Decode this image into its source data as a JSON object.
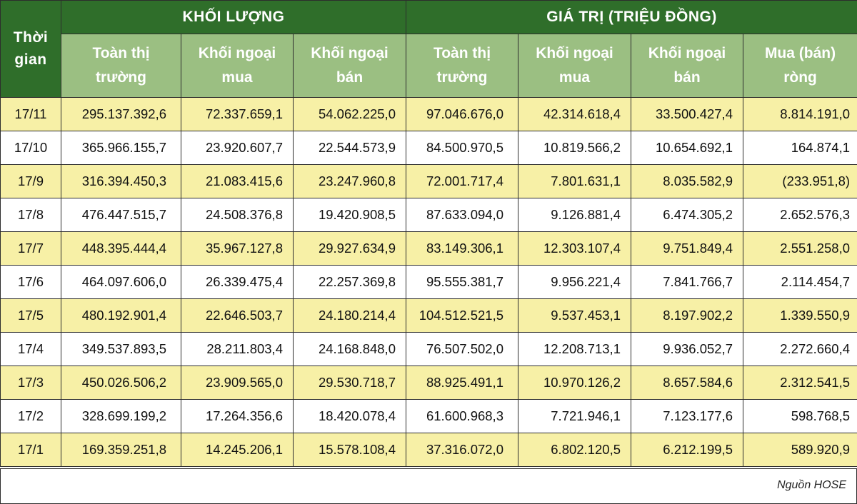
{
  "headers": {
    "time": "Thời\ngian",
    "group_volume": "KHỐI LƯỢNG",
    "group_value": "GIÁ TRỊ (TRIỆU ĐỒNG)",
    "vol_total": "Toàn thị\ntrường",
    "vol_buy": "Khối ngoại\nmua",
    "vol_sell": "Khối ngoại\nbán",
    "val_total": "Toàn thị\ntrường",
    "val_buy": "Khối ngoại\nmua",
    "val_sell": "Khối ngoại\nbán",
    "val_net": "Mua (bán)\nròng"
  },
  "rows": [
    {
      "date": "17/11",
      "vol_total": "295.137.392,6",
      "vol_buy": "72.337.659,1",
      "vol_sell": "54.062.225,0",
      "val_total": "97.046.676,0",
      "val_buy": "42.314.618,4",
      "val_sell": "33.500.427,4",
      "val_net": "8.814.191,0"
    },
    {
      "date": "17/10",
      "vol_total": "365.966.155,7",
      "vol_buy": "23.920.607,7",
      "vol_sell": "22.544.573,9",
      "val_total": "84.500.970,5",
      "val_buy": "10.819.566,2",
      "val_sell": "10.654.692,1",
      "val_net": "164.874,1"
    },
    {
      "date": "17/9",
      "vol_total": "316.394.450,3",
      "vol_buy": "21.083.415,6",
      "vol_sell": "23.247.960,8",
      "val_total": "72.001.717,4",
      "val_buy": "7.801.631,1",
      "val_sell": "8.035.582,9",
      "val_net": "(233.951,8)"
    },
    {
      "date": "17/8",
      "vol_total": "476.447.515,7",
      "vol_buy": "24.508.376,8",
      "vol_sell": "19.420.908,5",
      "val_total": "87.633.094,0",
      "val_buy": "9.126.881,4",
      "val_sell": "6.474.305,2",
      "val_net": "2.652.576,3"
    },
    {
      "date": "17/7",
      "vol_total": "448.395.444,4",
      "vol_buy": "35.967.127,8",
      "vol_sell": "29.927.634,9",
      "val_total": "83.149.306,1",
      "val_buy": "12.303.107,4",
      "val_sell": "9.751.849,4",
      "val_net": "2.551.258,0"
    },
    {
      "date": "17/6",
      "vol_total": "464.097.606,0",
      "vol_buy": "26.339.475,4",
      "vol_sell": "22.257.369,8",
      "val_total": "95.555.381,7",
      "val_buy": "9.956.221,4",
      "val_sell": "7.841.766,7",
      "val_net": "2.114.454,7"
    },
    {
      "date": "17/5",
      "vol_total": "480.192.901,4",
      "vol_buy": "22.646.503,7",
      "vol_sell": "24.180.214,4",
      "val_total": "104.512.521,5",
      "val_buy": "9.537.453,1",
      "val_sell": "8.197.902,2",
      "val_net": "1.339.550,9"
    },
    {
      "date": "17/4",
      "vol_total": "349.537.893,5",
      "vol_buy": "28.211.803,4",
      "vol_sell": "24.168.848,0",
      "val_total": "76.507.502,0",
      "val_buy": "12.208.713,1",
      "val_sell": "9.936.052,7",
      "val_net": "2.272.660,4"
    },
    {
      "date": "17/3",
      "vol_total": "450.026.506,2",
      "vol_buy": "23.909.565,0",
      "vol_sell": "29.530.718,7",
      "val_total": "88.925.491,1",
      "val_buy": "10.970.126,2",
      "val_sell": "8.657.584,6",
      "val_net": "2.312.541,5"
    },
    {
      "date": "17/2",
      "vol_total": "328.699.199,2",
      "vol_buy": "17.264.356,6",
      "vol_sell": "18.420.078,4",
      "val_total": "61.600.968,3",
      "val_buy": "7.721.946,1",
      "val_sell": "7.123.177,6",
      "val_net": "598.768,5"
    },
    {
      "date": "17/1",
      "vol_total": "169.359.251,8",
      "vol_buy": "14.245.206,1",
      "vol_sell": "15.578.108,4",
      "val_total": "37.316.072,0",
      "val_buy": "6.802.120,5",
      "val_sell": "6.212.199,5",
      "val_net": "589.920,9"
    }
  ],
  "source": "Nguồn HOSE",
  "colors": {
    "header_dark": "#2f6e2a",
    "header_light": "#9bbf82",
    "row_highlight": "#f7f0a6",
    "row_plain": "#ffffff"
  }
}
